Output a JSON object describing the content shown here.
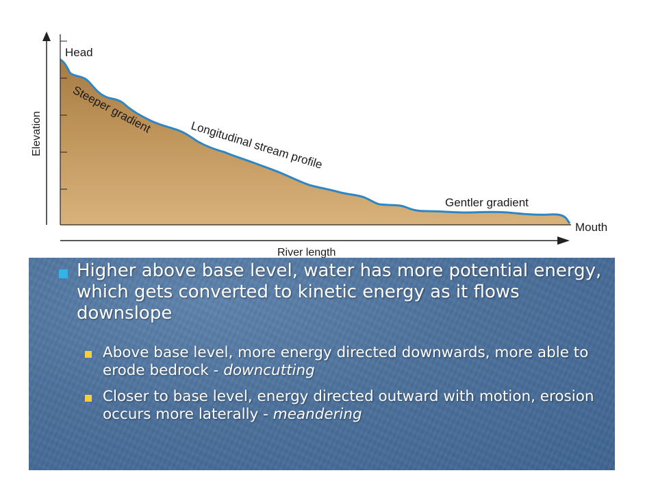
{
  "diagram": {
    "labels": {
      "head": "Head",
      "mouth": "Mouth",
      "elevation": "Elevation",
      "river_length": "River length",
      "steeper": "Steeper gradient",
      "profile": "Longitudinal stream profile",
      "gentler": "Gentler gradient"
    },
    "colors": {
      "land": "#b68c53",
      "river": "#2f86c5",
      "axis": "#222222"
    }
  },
  "bullets": {
    "main": "Higher above base level, water has more potential energy, which gets converted to kinetic energy as it flows downslope",
    "sub1": {
      "text": "Above base level, more energy directed downwards, more able to erode bedrock - ",
      "emphasis": "downcutting"
    },
    "sub2": {
      "text": "Closer to base level, energy directed outward with motion, erosion occurs more laterally - ",
      "emphasis": "meandering"
    },
    "colors": {
      "main_bullet": "#34b3e8",
      "sub_bullet": "#f4d03f",
      "panel": "#4d729d"
    }
  }
}
